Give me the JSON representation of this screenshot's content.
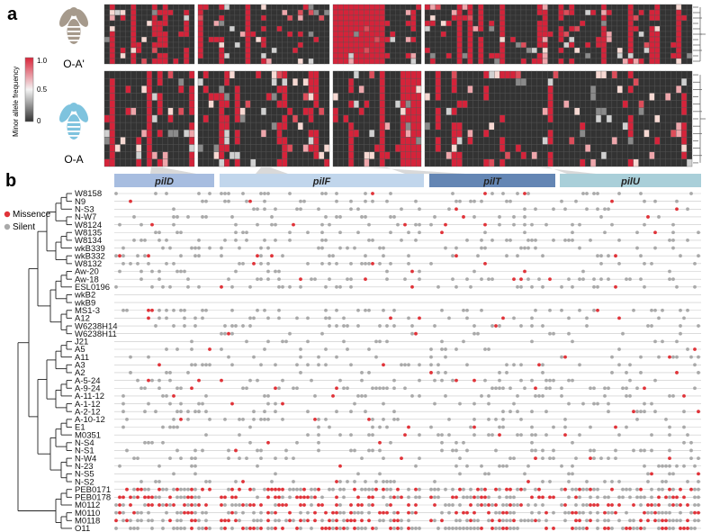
{
  "panels": {
    "a": "a",
    "b": "b"
  },
  "panel_a": {
    "hosts": [
      "O-A'",
      "O-A"
    ],
    "colorbar": {
      "title": "Minor allele frequency",
      "ticks": [
        "1.0",
        "0.5",
        "0"
      ],
      "colors": {
        "low": "#333333",
        "mid": "#f4f4f4",
        "high": "#d9253a"
      }
    },
    "rows_per_host": 11,
    "host_colors": {
      "O-A'": "#a69a8c",
      "O-A": "#7ec3de"
    }
  },
  "genes": [
    {
      "name": "pilD",
      "color": "#a7bde0"
    },
    {
      "name": "pilF",
      "color": "#c1d6ec"
    },
    {
      "name": "pilT",
      "color": "#6486b4"
    },
    {
      "name": "pilU",
      "color": "#a9cfd9"
    }
  ],
  "legend": [
    {
      "label": "Missence",
      "color": "#e03339"
    },
    {
      "label": "Silent",
      "color": "#a9a9a9"
    }
  ],
  "strains": [
    "W8158",
    "N9",
    "N-S3",
    "N-W7",
    "W8124",
    "W8135",
    "W8134",
    "wkB339",
    "wkB332",
    "W8132",
    "Aw-20",
    "Aw-18",
    "ESL0196",
    "wkB2",
    "wkB9",
    "MS1-3",
    "A12",
    "W6238H14",
    "W6238H11",
    "J21",
    "A5",
    "A11",
    "A3",
    "A2",
    "A-5-24",
    "A-9-24",
    "A-11-12",
    "A-1-12",
    "A-2-12",
    "A-10-12",
    "E1",
    "M0351",
    "N-S4",
    "N-S1",
    "N-W4",
    "N-23",
    "N-S5",
    "N-S2",
    "PEB0171",
    "PEB0178",
    "M0112",
    "M0110",
    "M0118",
    "O11"
  ]
}
